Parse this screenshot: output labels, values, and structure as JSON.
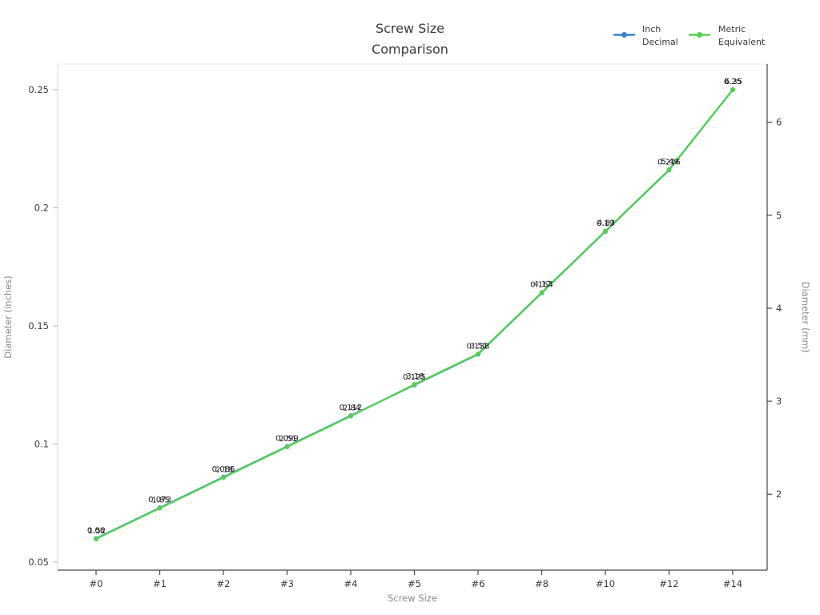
{
  "chart_data": {
    "type": "line",
    "title": "Screw Size Comparison",
    "title_lines": [
      "Screw Size",
      "Comparison"
    ],
    "x_label": "Screw Size",
    "y_left_label": "Diameter (inches)",
    "y_right_label": "Diameter (mm)",
    "categories": [
      "#0",
      "#1",
      "#2",
      "#3",
      "#4",
      "#5",
      "#6",
      "#8",
      "#10",
      "#12",
      "#14"
    ],
    "y_left_ticks": [
      0.05,
      0.1,
      0.15,
      0.2,
      0.25
    ],
    "y_left_tick_labels": [
      "0.05",
      "0.1",
      "0.15",
      "0.2",
      "0.25"
    ],
    "y_right_ticks": [
      2,
      3,
      4,
      5,
      6
    ],
    "y_right_tick_labels": [
      "2",
      "3",
      "4",
      "5",
      "6"
    ],
    "y_left_range": [
      0.04661,
      0.26085
    ],
    "y_right_range": [
      1.18389,
      6.62559
    ],
    "grid": false,
    "legend_position": "top-right",
    "series": [
      {
        "name": "Inch Decimal",
        "name_lines": [
          "Inch",
          "Decimal"
        ],
        "color": "#3a80d2",
        "axis": "left",
        "values": [
          0.06,
          0.073,
          0.086,
          0.099,
          0.112,
          0.125,
          0.138,
          0.164,
          0.19,
          0.216,
          0.25
        ],
        "labels": [
          "0.06",
          "0.073",
          "0.086",
          "0.099",
          "0.112",
          "0.125",
          "0.138",
          "0.164",
          "0.19",
          "0.216",
          "0.25"
        ]
      },
      {
        "name": "Metric Equivalent",
        "name_lines": [
          "Metric",
          "Equivalent"
        ],
        "color": "#55d14f",
        "axis": "right",
        "values": [
          1.52,
          1.85,
          2.18,
          2.51,
          2.84,
          3.18,
          3.51,
          4.17,
          4.83,
          5.49,
          6.35
        ],
        "labels": [
          "1.52",
          "1.85",
          "2.18",
          "2.51",
          "2.84",
          "3.18",
          "3.51",
          "4.17",
          "4.83",
          "5.49",
          "6.35"
        ]
      }
    ],
    "axis_colors": {
      "left_spine": "#d9d9d9",
      "top_spine": "#ededed",
      "bottom_spine": "#444444",
      "right_spine": "#444444",
      "left_tick": "#b8b8b8",
      "dark_tick": "#444444"
    }
  }
}
